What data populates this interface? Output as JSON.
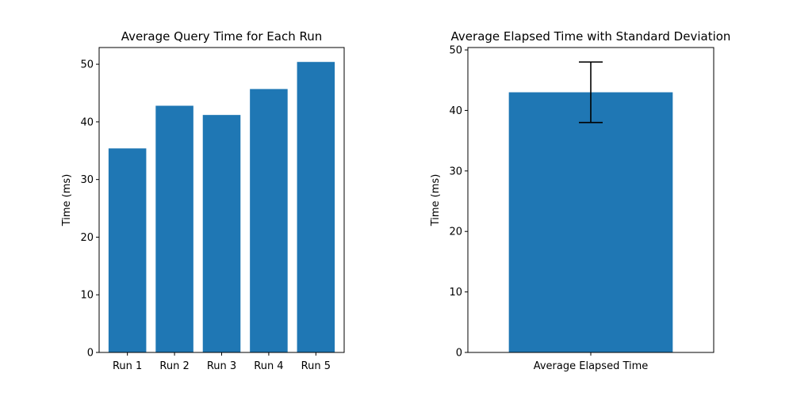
{
  "chart_data": [
    {
      "type": "bar",
      "title": "Average Query Time for Each Run",
      "xlabel": "",
      "ylabel": "Time (ms)",
      "categories": [
        "Run 1",
        "Run 2",
        "Run 3",
        "Run 4",
        "Run 5"
      ],
      "values": [
        35.4,
        42.8,
        41.2,
        45.7,
        50.4
      ],
      "ylim": [
        0,
        52.9
      ],
      "yticks": [
        0,
        10,
        20,
        30,
        40,
        50
      ],
      "bar_color": "#1f77b4",
      "grid": false,
      "legend": "none"
    },
    {
      "type": "bar",
      "title": "Average Elapsed Time with Standard Deviation",
      "xlabel": "",
      "ylabel": "Time (ms)",
      "categories": [
        "Average Elapsed Time"
      ],
      "values": [
        43.0
      ],
      "error": [
        5.0
      ],
      "ylim": [
        0,
        50.4
      ],
      "yticks": [
        0,
        10,
        20,
        30,
        40,
        50
      ],
      "bar_color": "#1f77b4",
      "grid": false,
      "legend": "none"
    }
  ]
}
